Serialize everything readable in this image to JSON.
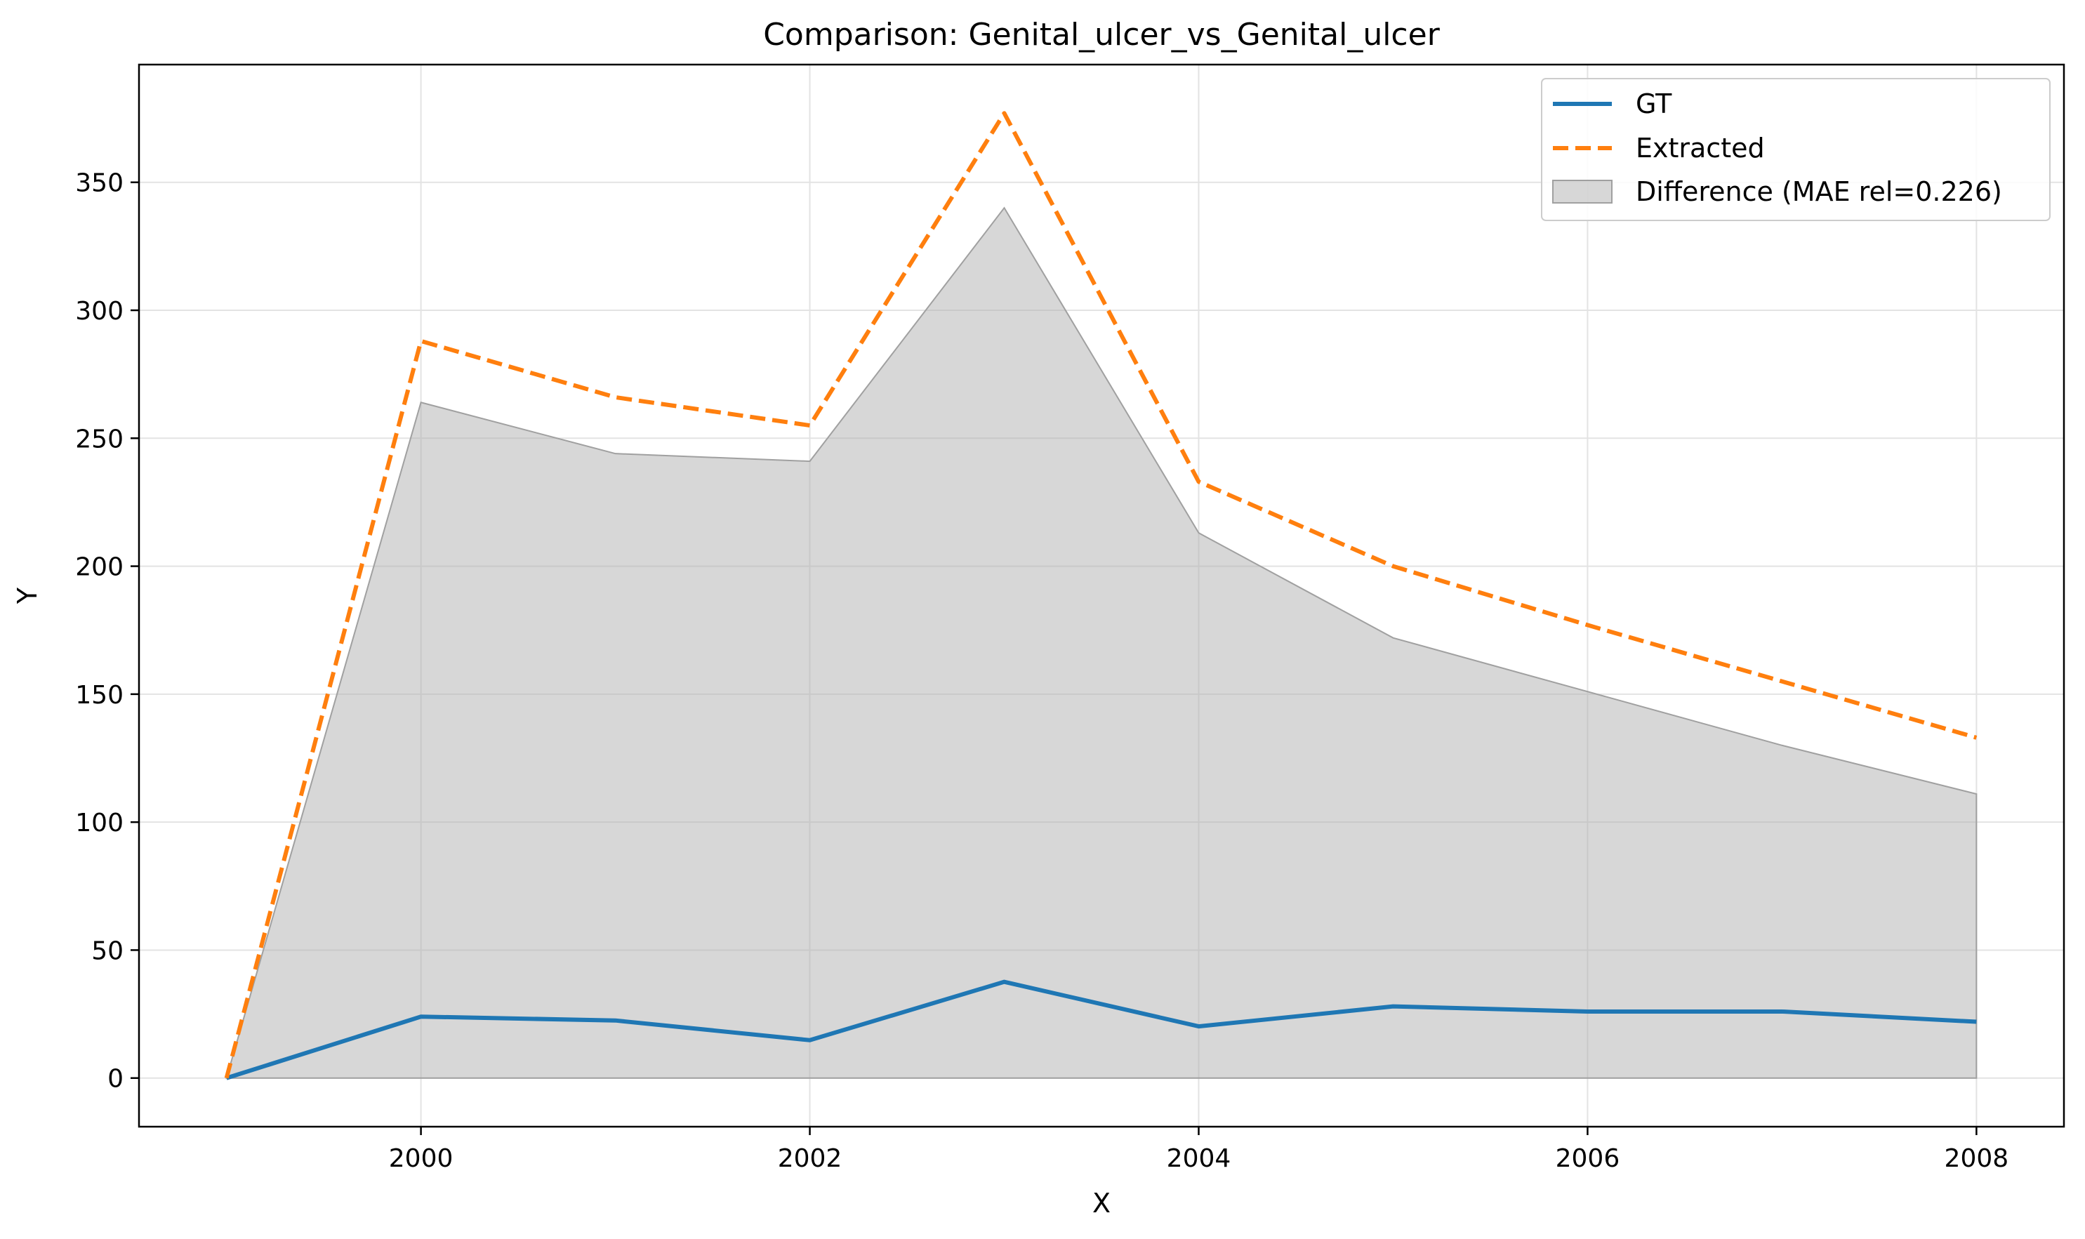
{
  "chart_data": {
    "type": "line",
    "title": "Comparison: Genital_ulcer_vs_Genital_ulcer",
    "xlabel": "X",
    "ylabel": "Y",
    "xlim": [
      1998.55,
      2008.45
    ],
    "ylim": [
      -19,
      396
    ],
    "xticks": [
      2000,
      2002,
      2004,
      2006,
      2008
    ],
    "yticks": [
      0,
      50,
      100,
      150,
      200,
      250,
      300,
      350
    ],
    "grid": true,
    "legend_position": "top-right",
    "x": [
      1999,
      2000,
      2001,
      2002,
      2003,
      2004,
      2005,
      2006,
      2007,
      2008
    ],
    "series": [
      {
        "name": "GT",
        "style": "solid",
        "color": "#1f77b4",
        "values": [
          0,
          24,
          22.5,
          14.8,
          37.6,
          20.2,
          28,
          26,
          26,
          22
        ]
      },
      {
        "name": "Extracted",
        "style": "dashed",
        "color": "#ff7f0e",
        "values": [
          0,
          288,
          266,
          255,
          377,
          233,
          200,
          177,
          155,
          133
        ]
      }
    ],
    "fill": {
      "name": "Difference (MAE rel=0.226)",
      "color": "#b0b0b0",
      "values": [
        0,
        264,
        244,
        241,
        340,
        213,
        172,
        151,
        130,
        111
      ]
    }
  }
}
